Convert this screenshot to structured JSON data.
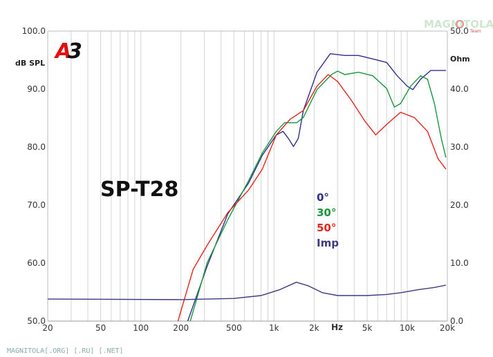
{
  "chart_data": {
    "type": "line",
    "title": "SP-T28",
    "xlabel": "Hz",
    "ylabel": "dB SPL",
    "y2label": "Ohm",
    "xscale": "log",
    "xlim": [
      20,
      20000
    ],
    "ylim": [
      50,
      100
    ],
    "y2lim": [
      0,
      50
    ],
    "grid": "vertical only",
    "legend_placement": "center",
    "x_ticks": [
      {
        "v": 20,
        "label": "20"
      },
      {
        "v": 50,
        "label": "50"
      },
      {
        "v": 100,
        "label": "100"
      },
      {
        "v": 200,
        "label": "200"
      },
      {
        "v": 500,
        "label": "500"
      },
      {
        "v": 1000,
        "label": "1k"
      },
      {
        "v": 2000,
        "label": "2k"
      },
      {
        "v": 5000,
        "label": "5k"
      },
      {
        "v": 10000,
        "label": "10k"
      },
      {
        "v": 20000,
        "label": "20k"
      }
    ],
    "y_ticks": [
      {
        "v": 100,
        "label": "100.0"
      },
      {
        "v": 90,
        "label": "90.0"
      },
      {
        "v": 80,
        "label": "80.0"
      },
      {
        "v": 70,
        "label": "70.0"
      },
      {
        "v": 60,
        "label": "60.0"
      },
      {
        "v": 50,
        "label": "50.0"
      }
    ],
    "y2_ticks": [
      {
        "v": 50,
        "label": "50.0"
      },
      {
        "v": 40,
        "label": "40.0"
      },
      {
        "v": 30,
        "label": "30.0"
      },
      {
        "v": 20,
        "label": "20.0"
      },
      {
        "v": 10,
        "label": "10.0"
      },
      {
        "v": 0,
        "label": "0.0"
      }
    ],
    "series": [
      {
        "name": "0°",
        "axis": "left",
        "color": "#2e2e8c",
        "points": [
          [
            225,
            50
          ],
          [
            315,
            59.5
          ],
          [
            450,
            68.5
          ],
          [
            644,
            73.8
          ],
          [
            817,
            78.6
          ],
          [
            1040,
            82.1
          ],
          [
            1169,
            82.7
          ],
          [
            1280,
            81.5
          ],
          [
            1400,
            80.1
          ],
          [
            1520,
            81.5
          ],
          [
            1660,
            86.3
          ],
          [
            2100,
            92.9
          ],
          [
            2640,
            96.1
          ],
          [
            3400,
            95.8
          ],
          [
            4300,
            95.8
          ],
          [
            5500,
            95.2
          ],
          [
            7000,
            94.6
          ],
          [
            8400,
            92.3
          ],
          [
            10000,
            90.5
          ],
          [
            11000,
            89.9
          ],
          [
            12600,
            91.7
          ],
          [
            15000,
            93.2
          ],
          [
            19500,
            93.2
          ]
        ]
      },
      {
        "name": "30°",
        "axis": "left",
        "color": "#16983a",
        "points": [
          [
            235,
            50
          ],
          [
            315,
            60.1
          ],
          [
            450,
            67.5
          ],
          [
            644,
            74.2
          ],
          [
            817,
            79
          ],
          [
            1040,
            82.7
          ],
          [
            1200,
            84.2
          ],
          [
            1480,
            84.2
          ],
          [
            1660,
            85.1
          ],
          [
            2100,
            89.9
          ],
          [
            2700,
            92.5
          ],
          [
            3000,
            93.1
          ],
          [
            3400,
            92.5
          ],
          [
            4300,
            92.9
          ],
          [
            5500,
            92.3
          ],
          [
            7000,
            90.1
          ],
          [
            8000,
            86.9
          ],
          [
            8900,
            87.5
          ],
          [
            10600,
            90.5
          ],
          [
            12600,
            92.3
          ],
          [
            14200,
            91.7
          ],
          [
            16000,
            87.5
          ],
          [
            18000,
            81.5
          ],
          [
            19500,
            78.2
          ]
        ]
      },
      {
        "name": "50°",
        "axis": "left",
        "color": "#e2241a",
        "points": [
          [
            190,
            50
          ],
          [
            247,
            58.9
          ],
          [
            315,
            63.1
          ],
          [
            450,
            68.7
          ],
          [
            644,
            72.6
          ],
          [
            817,
            76.2
          ],
          [
            1040,
            82.1
          ],
          [
            1320,
            84.8
          ],
          [
            1660,
            86.3
          ],
          [
            2100,
            90.5
          ],
          [
            2550,
            92.5
          ],
          [
            3000,
            91.3
          ],
          [
            3800,
            88.1
          ],
          [
            4800,
            84.5
          ],
          [
            5800,
            82.1
          ],
          [
            7000,
            83.9
          ],
          [
            8900,
            86
          ],
          [
            11300,
            85.1
          ],
          [
            14200,
            82.7
          ],
          [
            17000,
            78
          ],
          [
            19500,
            76.2
          ]
        ]
      },
      {
        "name": "Imp",
        "axis": "right",
        "color": "#3a3a80",
        "points": [
          [
            20,
            3.8
          ],
          [
            200,
            3.7
          ],
          [
            500,
            3.9
          ],
          [
            800,
            4.4
          ],
          [
            1100,
            5.4
          ],
          [
            1470,
            6.7
          ],
          [
            1800,
            6.1
          ],
          [
            2300,
            4.9
          ],
          [
            3000,
            4.4
          ],
          [
            5000,
            4.4
          ],
          [
            7000,
            4.6
          ],
          [
            9000,
            4.9
          ],
          [
            12000,
            5.4
          ],
          [
            16000,
            5.8
          ],
          [
            19500,
            6.2
          ]
        ]
      }
    ]
  },
  "logo": "A3",
  "watermark_top": "MAGNITOLA Team",
  "watermark_bottom": "MAGNITOLA[.ORG] [.RU] [.NET]"
}
